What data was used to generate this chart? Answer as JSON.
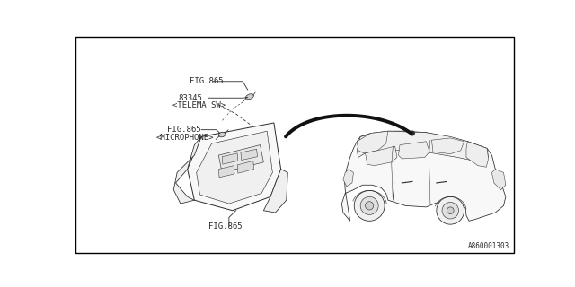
{
  "background_color": "#ffffff",
  "border_color": "#000000",
  "diagram_code": "A860001303",
  "labels": {
    "fig865_top": "FIG.865",
    "part_number": "83345",
    "telema_sw": "<TELEMA SW>",
    "fig865_mid": "FIG.865",
    "microphone": "<MICROPHONE>",
    "fig865_bot": "FIG.865"
  },
  "line_color": "#2a2a2a",
  "text_color": "#2a2a2a",
  "font_size": 6.5,
  "border_width": 1.0
}
